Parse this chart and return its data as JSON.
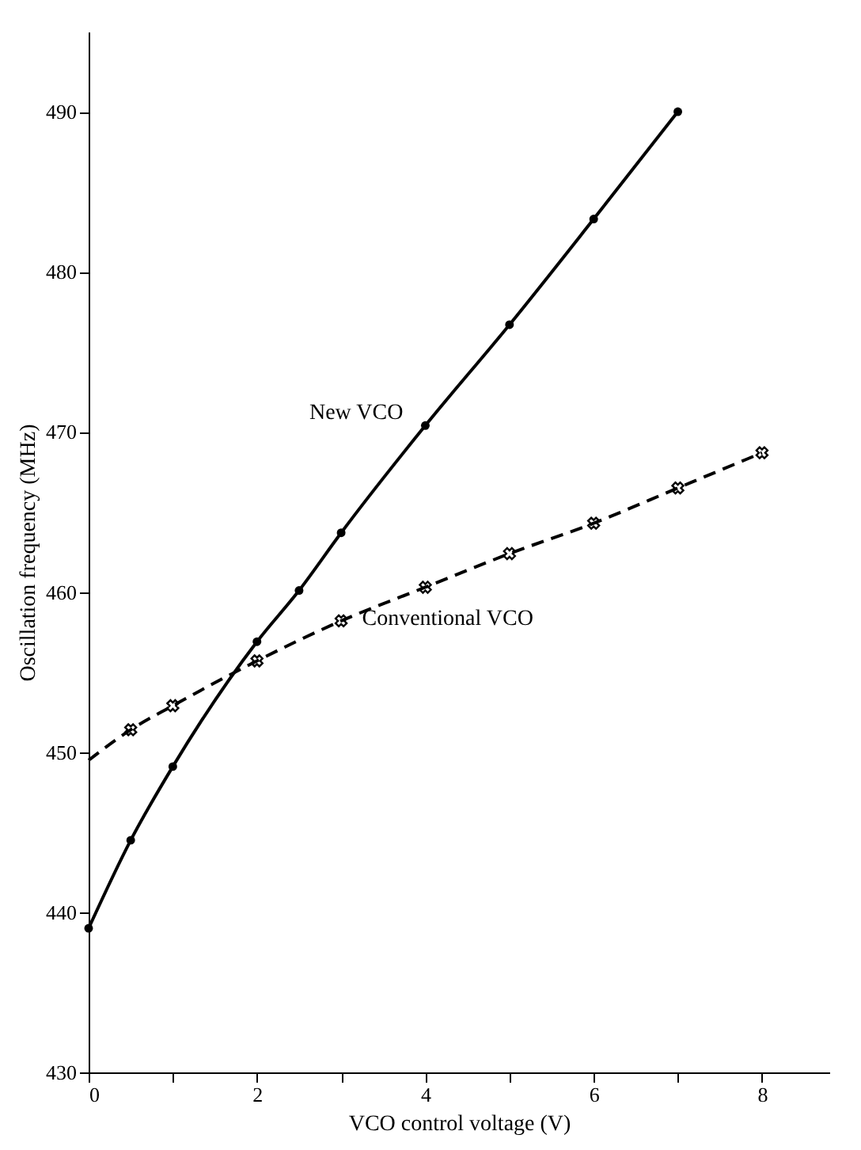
{
  "chart_data": {
    "type": "line",
    "xlabel": "VCO control voltage (V)",
    "ylabel": "Oscillation frequency (MHz)",
    "xlim": [
      0,
      8.8
    ],
    "ylim": [
      430,
      495
    ],
    "xticks": [
      0,
      {
        "value": 1,
        "label": null
      },
      2,
      {
        "value": 3,
        "label": null
      },
      4,
      {
        "value": 5,
        "label": null
      },
      6,
      {
        "value": 7,
        "label": null
      },
      8
    ],
    "yticks": [
      430,
      440,
      450,
      460,
      470,
      480,
      490
    ],
    "grid": false,
    "legend": false,
    "series": [
      {
        "name": "New VCO",
        "color": "#000000",
        "marker": "circle",
        "line_style": "solid",
        "x": [
          0,
          0.5,
          1,
          2,
          2.5,
          3,
          4,
          5,
          6,
          7
        ],
        "values": [
          439,
          444.5,
          449.1,
          456.9,
          460.1,
          463.7,
          470.4,
          476.7,
          483.3,
          490.0
        ]
      },
      {
        "name": "Conventional VCO",
        "color": "#000000",
        "marker": "cross",
        "line_style": "dashed",
        "x": [
          0,
          0.5,
          1,
          2,
          3,
          4,
          5,
          6,
          7,
          8
        ],
        "values": [
          449.5,
          451.4,
          452.9,
          455.7,
          458.2,
          460.3,
          462.4,
          464.3,
          466.5,
          468.7
        ]
      }
    ]
  }
}
